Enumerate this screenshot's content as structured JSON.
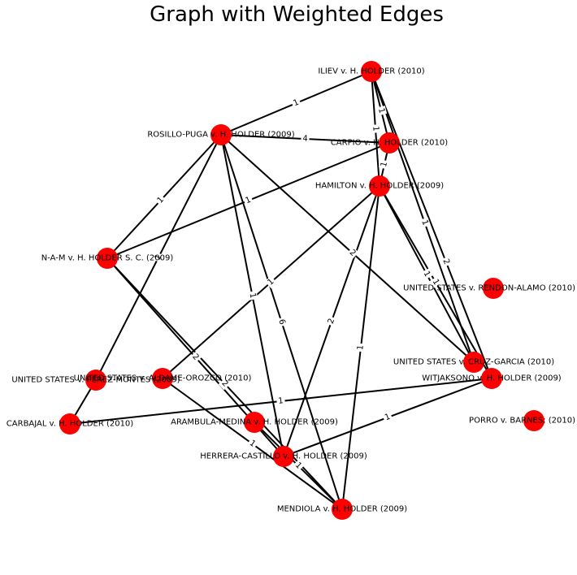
{
  "title": "Graph with Weighted Edges",
  "colors": {
    "node": "#ff0000",
    "edge": "#000000",
    "background": "#ffffff"
  },
  "nodes": [
    {
      "id": "iliev",
      "label": "ILIEV v. H. HOLDER (2010)"
    },
    {
      "id": "rosillo",
      "label": "ROSILLO-PUGA v. H. HOLDER (2009)"
    },
    {
      "id": "carpio",
      "label": "CARPIO v. H. HOLDER (2010)"
    },
    {
      "id": "hamilton",
      "label": "HAMILTON v. H. HOLDER (2009)"
    },
    {
      "id": "nam",
      "label": "N-A-M v. H. HOLDER S. C. (2009)"
    },
    {
      "id": "rendon",
      "label": "UNITED STATES v. RENDON-ALAMO (2010)"
    },
    {
      "id": "cruz",
      "label": "UNITED STATES v. CRUZ-GARCIA (2010)"
    },
    {
      "id": "witjaksono",
      "label": "WITJAKSONO v. H. HOLDER (2009)"
    },
    {
      "id": "perez",
      "label": "UNITED STATES v. PEREZ-MONTES (2009)"
    },
    {
      "id": "aldame",
      "label": "UNITED STATES v. ALDAME-OROZCO (2010)"
    },
    {
      "id": "carbajal",
      "label": "CARBAJAL v. H. HOLDER (2010)"
    },
    {
      "id": "arambula",
      "label": "ARAMBULA-MEDINA v. H. HOLDER (2009)"
    },
    {
      "id": "porro",
      "label": "PORRO v. BARNES; (2010)"
    },
    {
      "id": "herrera",
      "label": "HERRERA-CASTILLO v. H. HOLDER (2009)"
    },
    {
      "id": "mendiola",
      "label": "MENDIOLA v. H. HOLDER (2009)"
    }
  ],
  "edges": [
    {
      "source": "iliev",
      "target": "rosillo",
      "weight": "1"
    },
    {
      "source": "iliev",
      "target": "carpio",
      "weight": "1"
    },
    {
      "source": "iliev",
      "target": "hamilton",
      "weight": "1"
    },
    {
      "source": "iliev",
      "target": "cruz",
      "weight": "1"
    },
    {
      "source": "iliev",
      "target": "witjaksono",
      "weight": "2"
    },
    {
      "source": "rosillo",
      "target": "carpio",
      "weight": "4"
    },
    {
      "source": "rosillo",
      "target": "nam",
      "weight": "1"
    },
    {
      "source": "rosillo",
      "target": "perez",
      "weight": "1"
    },
    {
      "source": "rosillo",
      "target": "herrera",
      "weight": "1"
    },
    {
      "source": "rosillo",
      "target": "mendiola",
      "weight": "6"
    },
    {
      "source": "rosillo",
      "target": "cruz",
      "weight": "2"
    },
    {
      "source": "carpio",
      "target": "nam",
      "weight": "1"
    },
    {
      "source": "carpio",
      "target": "hamilton",
      "weight": "1"
    },
    {
      "source": "hamilton",
      "target": "aldame",
      "weight": "1"
    },
    {
      "source": "hamilton",
      "target": "herrera",
      "weight": "2"
    },
    {
      "source": "hamilton",
      "target": "mendiola",
      "weight": "1"
    },
    {
      "source": "hamilton",
      "target": "cruz",
      "weight": "1"
    },
    {
      "source": "hamilton",
      "target": "witjaksono",
      "weight": "1"
    },
    {
      "source": "nam",
      "target": "herrera",
      "weight": "2"
    },
    {
      "source": "nam",
      "target": "mendiola",
      "weight": "2"
    },
    {
      "source": "perez",
      "target": "carbajal",
      "weight": ""
    },
    {
      "source": "aldame",
      "target": "mendiola",
      "weight": "1"
    },
    {
      "source": "carbajal",
      "target": "witjaksono",
      "weight": "1"
    },
    {
      "source": "herrera",
      "target": "witjaksono",
      "weight": "1"
    },
    {
      "source": "arambula",
      "target": "mendiola",
      "weight": "1"
    }
  ]
}
